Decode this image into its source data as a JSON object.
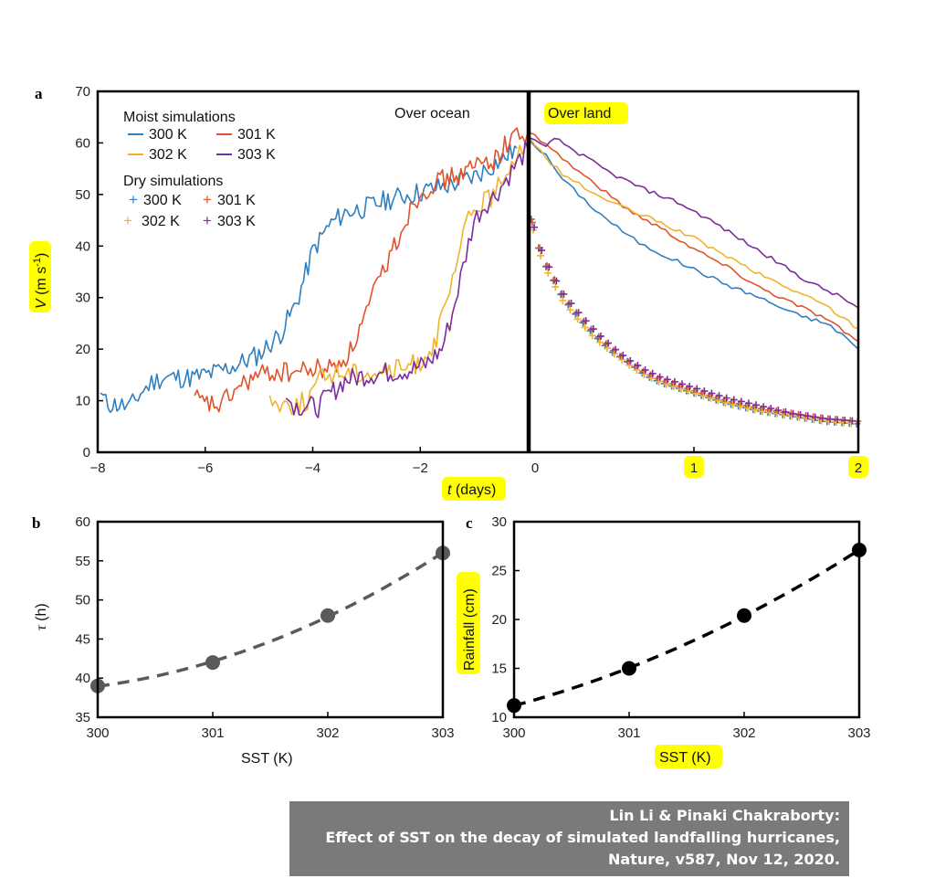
{
  "chart_data": [
    {
      "panel": "a",
      "type": "line",
      "xlabel": "t (days)",
      "ylabel": "V (m s-1)",
      "ylim": [
        0,
        70
      ],
      "yticks": [
        0,
        10,
        20,
        30,
        40,
        50,
        60,
        70
      ],
      "left": {
        "annotation": "Over ocean",
        "xlim": [
          -8,
          0
        ],
        "xticks": [
          -8,
          -6,
          -4,
          -2
        ],
        "xtick_labels": [
          "−8",
          "−6",
          "−4",
          "−2"
        ]
      },
      "right": {
        "annotation": "Over land",
        "xlim": [
          0,
          2
        ],
        "xticks": [
          0,
          1,
          2
        ],
        "xtick_labels": [
          "0",
          "1",
          "2"
        ]
      },
      "legend": {
        "moist_title": "Moist simulations",
        "dry_title": "Dry simulations",
        "entries": [
          "300 K",
          "301 K",
          "302 K",
          "303 K"
        ]
      },
      "series": [
        {
          "name": "300 K",
          "color": "#2f7fc1",
          "ocean": [
            [
              -7.95,
              11.5
            ],
            [
              -7.85,
              9.5
            ],
            [
              -7.6,
              9.2
            ],
            [
              -7.4,
              8.7
            ],
            [
              -7.2,
              11.5
            ],
            [
              -7.0,
              13.5
            ],
            [
              -6.8,
              14.5
            ],
            [
              -6.5,
              14.5
            ],
            [
              -6.2,
              14.5
            ],
            [
              -5.8,
              15.5
            ],
            [
              -5.4,
              17
            ],
            [
              -5.0,
              19
            ],
            [
              -4.6,
              23
            ],
            [
              -4.3,
              29
            ],
            [
              -4.0,
              39
            ],
            [
              -3.7,
              44
            ],
            [
              -3.4,
              46.5
            ],
            [
              -3.0,
              47.5
            ],
            [
              -2.6,
              49
            ],
            [
              -2.2,
              50
            ],
            [
              -1.8,
              51
            ],
            [
              -1.4,
              52
            ],
            [
              -1.0,
              53.5
            ],
            [
              -0.6,
              56
            ],
            [
              -0.2,
              59
            ]
          ],
          "land_moist": [
            [
              0,
              60.5
            ],
            [
              0.1,
              57.5
            ],
            [
              0.2,
              53
            ],
            [
              0.3,
              50
            ],
            [
              0.4,
              47
            ],
            [
              0.5,
              44.5
            ],
            [
              0.6,
              42
            ],
            [
              0.7,
              40
            ],
            [
              0.8,
              38.5
            ],
            [
              0.9,
              37
            ],
            [
              1.0,
              35.5
            ],
            [
              1.2,
              32.5
            ],
            [
              1.4,
              30
            ],
            [
              1.6,
              27
            ],
            [
              1.8,
              25
            ],
            [
              1.9,
              23
            ],
            [
              2.0,
              20
            ]
          ],
          "land_dry": [
            [
              0,
              46.5
            ],
            [
              0.05,
              40
            ],
            [
              0.1,
              36
            ],
            [
              0.15,
              33
            ],
            [
              0.2,
              30
            ],
            [
              0.3,
              26
            ],
            [
              0.4,
              22.5
            ],
            [
              0.5,
              19.5
            ],
            [
              0.6,
              17.5
            ],
            [
              0.7,
              15
            ],
            [
              0.8,
              13.5
            ],
            [
              0.9,
              12.5
            ],
            [
              1.0,
              11.5
            ],
            [
              1.2,
              9.5
            ],
            [
              1.4,
              8
            ],
            [
              1.6,
              7
            ],
            [
              1.8,
              6
            ],
            [
              2.0,
              5.5
            ]
          ]
        },
        {
          "name": "301 K",
          "color": "#e0542b",
          "ocean": [
            [
              -6.2,
              11
            ],
            [
              -6.1,
              9.5
            ],
            [
              -5.7,
              9
            ],
            [
              -5.5,
              11.5
            ],
            [
              -5.2,
              14
            ],
            [
              -4.8,
              15.5
            ],
            [
              -4.4,
              15.5
            ],
            [
              -4.0,
              16
            ],
            [
              -3.6,
              16.5
            ],
            [
              -3.3,
              19.5
            ],
            [
              -3.0,
              27
            ],
            [
              -2.7,
              35
            ],
            [
              -2.4,
              42
            ],
            [
              -2.1,
              49
            ],
            [
              -1.8,
              52
            ],
            [
              -1.5,
              53
            ],
            [
              -1.2,
              54
            ],
            [
              -0.9,
              56
            ],
            [
              -0.6,
              57
            ],
            [
              -0.3,
              61
            ],
            [
              -0.15,
              62
            ],
            [
              0,
              62
            ]
          ],
          "land_moist": [
            [
              0,
              62
            ],
            [
              0.1,
              60
            ],
            [
              0.2,
              57
            ],
            [
              0.3,
              54.5
            ],
            [
              0.4,
              52
            ],
            [
              0.5,
              49.5
            ],
            [
              0.6,
              47
            ],
            [
              0.8,
              43.5
            ],
            [
              1.0,
              39.5
            ],
            [
              1.2,
              36
            ],
            [
              1.4,
              32
            ],
            [
              1.6,
              29
            ],
            [
              1.8,
              26
            ],
            [
              2.0,
              21.5
            ]
          ],
          "land_dry": [
            [
              0,
              46.5
            ],
            [
              0.05,
              40.5
            ],
            [
              0.1,
              36.5
            ],
            [
              0.15,
              33.5
            ],
            [
              0.2,
              30.5
            ],
            [
              0.3,
              26.5
            ],
            [
              0.4,
              23
            ],
            [
              0.5,
              20
            ],
            [
              0.6,
              17.5
            ],
            [
              0.7,
              15.5
            ],
            [
              0.8,
              14
            ],
            [
              0.9,
              13
            ],
            [
              1.0,
              12
            ],
            [
              1.2,
              10
            ],
            [
              1.4,
              8.5
            ],
            [
              1.6,
              7.5
            ],
            [
              1.8,
              6.5
            ],
            [
              2.0,
              6
            ]
          ]
        },
        {
          "name": "302 K",
          "color": "#f2b22c",
          "ocean": [
            [
              -4.8,
              11
            ],
            [
              -4.7,
              9.5
            ],
            [
              -4.3,
              9.2
            ],
            [
              -4.1,
              10
            ],
            [
              -3.9,
              14
            ],
            [
              -3.6,
              15.5
            ],
            [
              -3.2,
              15.5
            ],
            [
              -2.8,
              15.5
            ],
            [
              -2.4,
              16
            ],
            [
              -2.0,
              17.5
            ],
            [
              -1.7,
              22
            ],
            [
              -1.5,
              29
            ],
            [
              -1.3,
              37
            ],
            [
              -1.1,
              46
            ],
            [
              -0.9,
              48
            ],
            [
              -0.6,
              50
            ],
            [
              -0.4,
              55
            ],
            [
              -0.2,
              58
            ],
            [
              0,
              60.5
            ]
          ],
          "land_moist": [
            [
              0,
              61
            ],
            [
              0.1,
              57
            ],
            [
              0.2,
              54
            ],
            [
              0.3,
              52
            ],
            [
              0.4,
              50
            ],
            [
              0.5,
              48.5
            ],
            [
              0.6,
              47
            ],
            [
              0.8,
              44.5
            ],
            [
              1.0,
              41.5
            ],
            [
              1.2,
              38
            ],
            [
              1.4,
              34.5
            ],
            [
              1.6,
              31.5
            ],
            [
              1.8,
              28.5
            ],
            [
              2.0,
              24
            ]
          ],
          "land_dry": [
            [
              0,
              46
            ],
            [
              0.05,
              39.5
            ],
            [
              0.1,
              35.5
            ],
            [
              0.15,
              32.5
            ],
            [
              0.2,
              29.5
            ],
            [
              0.3,
              25.5
            ],
            [
              0.4,
              22
            ],
            [
              0.5,
              19.5
            ],
            [
              0.6,
              17
            ],
            [
              0.7,
              15
            ],
            [
              0.8,
              13.5
            ],
            [
              0.9,
              12.5
            ],
            [
              1.0,
              11.5
            ],
            [
              1.2,
              9.5
            ],
            [
              1.4,
              8
            ],
            [
              1.6,
              7
            ],
            [
              1.8,
              6
            ],
            [
              2.0,
              5.5
            ]
          ]
        },
        {
          "name": "303 K",
          "color": "#7a2d9b",
          "ocean": [
            [
              -4.5,
              10.5
            ],
            [
              -4.3,
              9
            ],
            [
              -3.9,
              8.8
            ],
            [
              -3.7,
              11
            ],
            [
              -3.4,
              14
            ],
            [
              -3.0,
              15
            ],
            [
              -2.6,
              15.5
            ],
            [
              -2.2,
              16
            ],
            [
              -1.9,
              17
            ],
            [
              -1.6,
              20
            ],
            [
              -1.4,
              27
            ],
            [
              -1.2,
              36
            ],
            [
              -1.0,
              45
            ],
            [
              -0.8,
              48
            ],
            [
              -0.6,
              50
            ],
            [
              -0.4,
              53
            ],
            [
              -0.2,
              56
            ],
            [
              0,
              59
            ]
          ],
          "land_moist": [
            [
              0,
              61
            ],
            [
              0.1,
              59
            ],
            [
              0.15,
              61
            ],
            [
              0.3,
              58
            ],
            [
              0.5,
              54
            ],
            [
              0.7,
              51
            ],
            [
              0.9,
              48.5
            ],
            [
              1.1,
              45
            ],
            [
              1.3,
              41
            ],
            [
              1.5,
              37
            ],
            [
              1.7,
              33
            ],
            [
              1.9,
              30
            ],
            [
              2.0,
              28
            ]
          ],
          "land_dry": [
            [
              0,
              47
            ],
            [
              0.05,
              41
            ],
            [
              0.1,
              37
            ],
            [
              0.15,
              34
            ],
            [
              0.2,
              31
            ],
            [
              0.3,
              27
            ],
            [
              0.4,
              23.5
            ],
            [
              0.5,
              20.5
            ],
            [
              0.6,
              18
            ],
            [
              0.7,
              16
            ],
            [
              0.8,
              14.5
            ],
            [
              0.9,
              13.5
            ],
            [
              1.0,
              12.5
            ],
            [
              1.2,
              10.5
            ],
            [
              1.4,
              9
            ],
            [
              1.6,
              7.5
            ],
            [
              1.8,
              6.5
            ],
            [
              2.0,
              6
            ]
          ]
        }
      ]
    },
    {
      "panel": "b",
      "type": "scatter",
      "xlabel": "SST (K)",
      "ylabel": "τ (h)",
      "x": [
        300,
        301,
        302,
        303
      ],
      "y": [
        39,
        42,
        48,
        56
      ],
      "xlim": [
        300,
        303
      ],
      "ylim": [
        35,
        60
      ],
      "yticks": [
        35,
        40,
        45,
        50,
        55,
        60
      ],
      "marker_color": "#5a5a5a",
      "fit": "dashed quadratic"
    },
    {
      "panel": "c",
      "type": "scatter",
      "xlabel": "SST (K)",
      "ylabel": "Rainfall (cm)",
      "x": [
        300,
        301,
        302,
        303
      ],
      "y": [
        11.2,
        15,
        20.4,
        27.1
      ],
      "xlim": [
        300,
        303
      ],
      "ylim": [
        10,
        30
      ],
      "yticks": [
        10,
        15,
        20,
        25,
        30
      ],
      "marker_color": "#000000",
      "fit": "dashed quadratic"
    }
  ],
  "credit": {
    "line1": "Lin Li & Pinaki Chakraborty:",
    "line2": "Effect of SST on the decay of simulated landfalling hurricanes,",
    "line3": "Nature, v587, Nov 12, 2020."
  }
}
